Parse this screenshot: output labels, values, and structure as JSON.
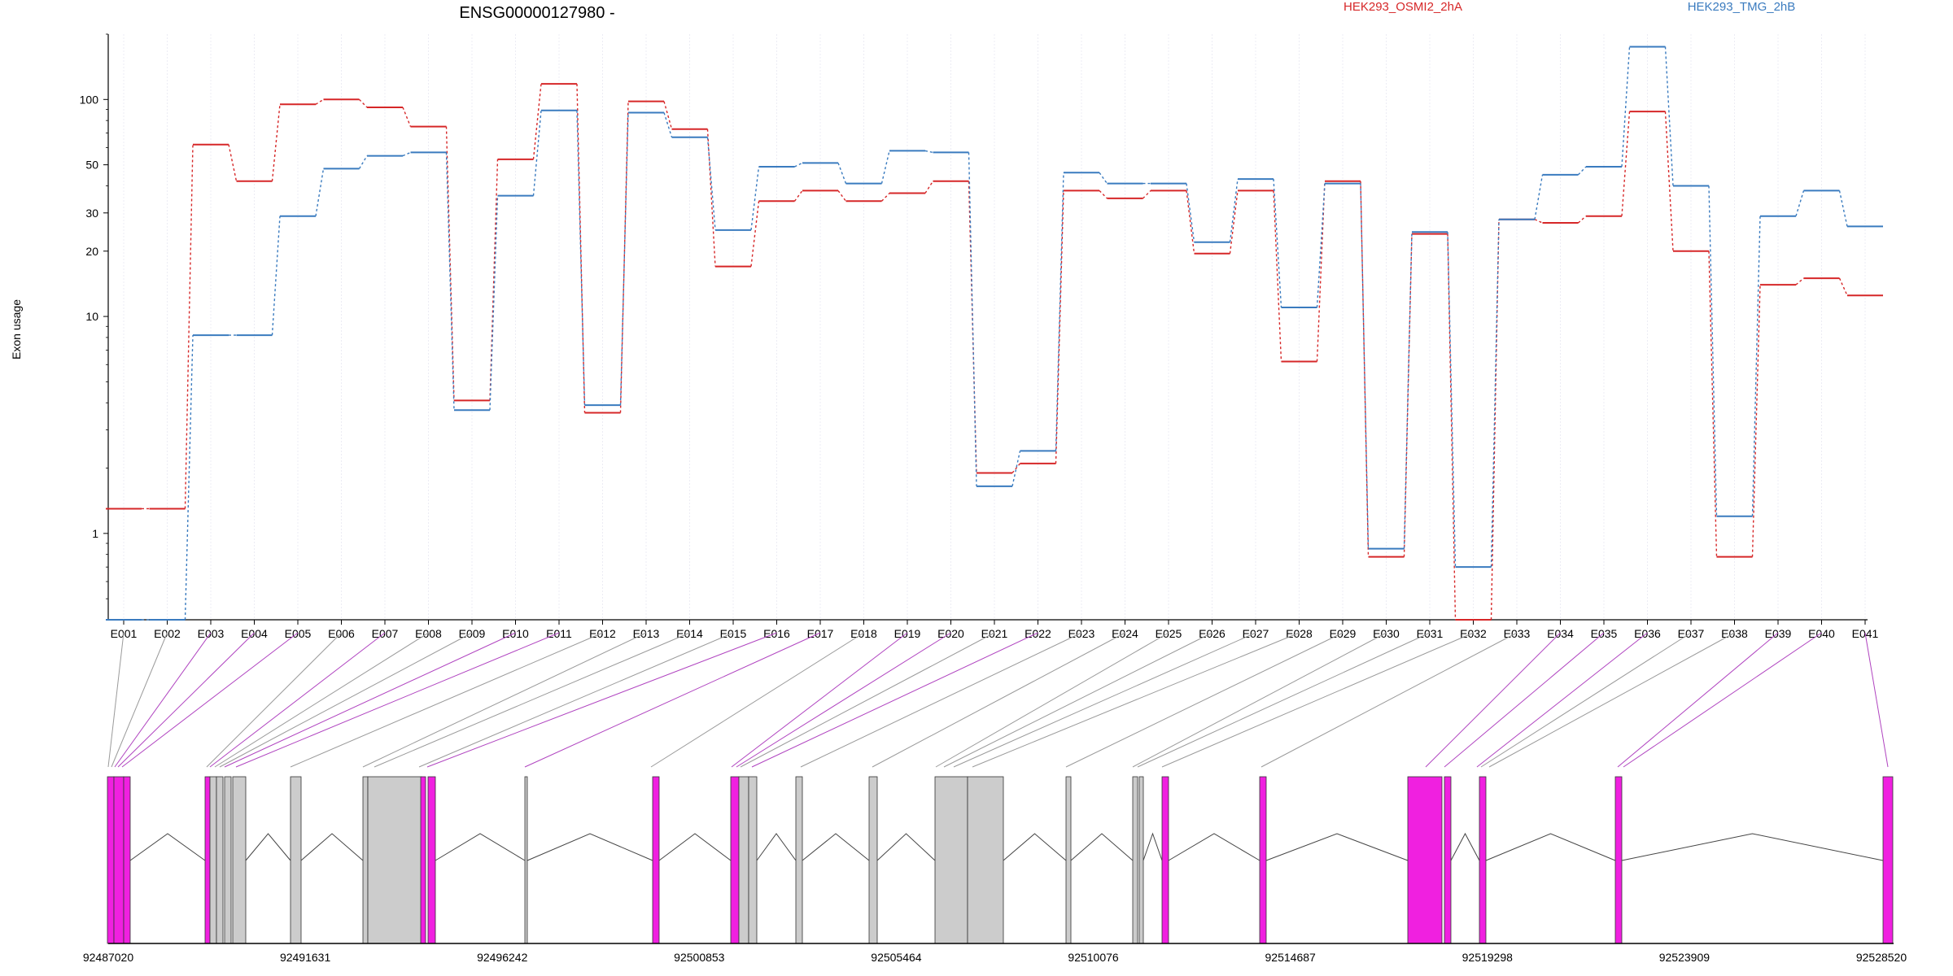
{
  "chart_data": {
    "type": "line",
    "title": "ENSG00000127980 -",
    "ylabel": "Exon usage",
    "yscale": "log",
    "ylim": [
      0.4,
      200
    ],
    "yticks": [
      1,
      10,
      20,
      30,
      50,
      100
    ],
    "categories": [
      "E001",
      "E002",
      "E003",
      "E004",
      "E005",
      "E006",
      "E007",
      "E008",
      "E009",
      "E010",
      "E011",
      "E012",
      "E013",
      "E014",
      "E015",
      "E016",
      "E017",
      "E018",
      "E019",
      "E020",
      "E021",
      "E022",
      "E023",
      "E024",
      "E025",
      "E026",
      "E027",
      "E028",
      "E029",
      "E030",
      "E031",
      "E032",
      "E033",
      "E034",
      "E035",
      "E036",
      "E037",
      "E038",
      "E039",
      "E040",
      "E041"
    ],
    "series": [
      {
        "name": "HEK293_OSMI2_2hA",
        "color": "#d62728",
        "values": [
          1.3,
          1.3,
          62,
          42,
          95,
          100,
          92,
          75,
          4.1,
          53,
          118,
          3.6,
          98,
          73,
          17,
          34,
          38,
          34,
          37,
          42,
          1.9,
          2.1,
          38,
          35,
          38,
          19.5,
          38,
          6.2,
          42,
          0.78,
          24,
          0.4,
          28,
          27,
          29,
          88,
          20,
          0.78,
          14,
          15,
          12.5
        ]
      },
      {
        "name": "HEK293_TMG_2hB",
        "color": "#3a7bbf",
        "values": [
          0.4,
          0.4,
          8.2,
          8.2,
          29,
          48,
          55,
          57,
          3.7,
          36,
          89,
          3.9,
          87,
          67,
          25,
          49,
          51,
          41,
          58,
          57,
          1.65,
          2.4,
          46,
          41,
          41,
          22,
          43,
          11,
          41,
          0.85,
          24.5,
          0.7,
          28,
          45,
          49,
          175,
          40,
          1.2,
          29,
          38,
          26
        ]
      }
    ],
    "gene_model": {
      "coordinate_ticks": [
        "92487020",
        "92491631",
        "92496242",
        "92500853",
        "92505464",
        "92510076",
        "92514687",
        "92519298",
        "92523909",
        "92528520"
      ],
      "highlight_color": "#f020e0",
      "exon_color": "#cccccc"
    }
  }
}
